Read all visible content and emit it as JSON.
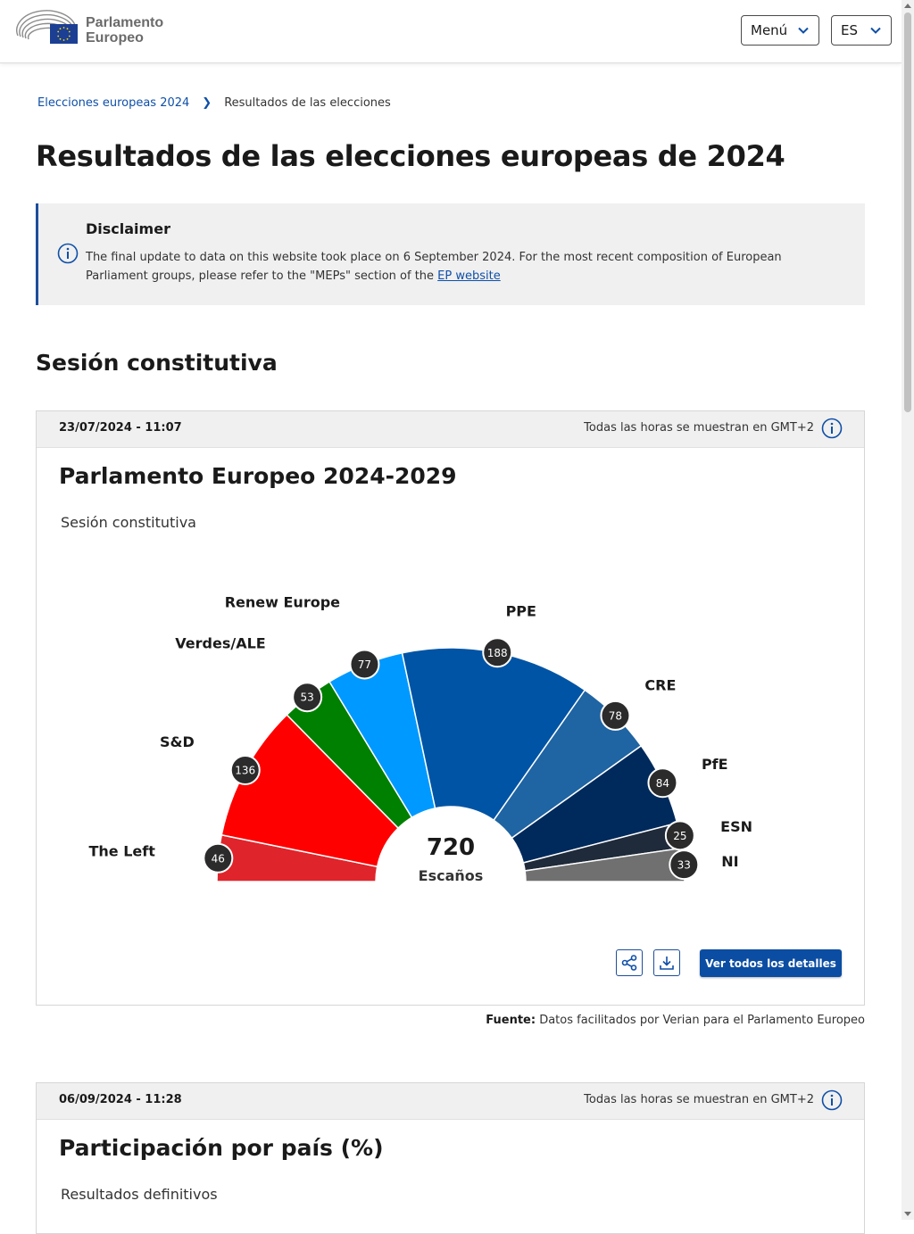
{
  "header": {
    "logo_line1": "Parlamento",
    "logo_line2": "Europeo",
    "menu_label": "Menú",
    "lang_label": "ES"
  },
  "breadcrumb": {
    "link": "Elecciones europeas 2024",
    "current": "Resultados de las elecciones"
  },
  "page_title": "Resultados de las elecciones europeas de 2024",
  "disclaimer": {
    "title": "Disclaimer",
    "text": "The final update to data on this website took place on 6 September 2024. For the most recent composition of European Parliament groups, please refer to the \"MEPs\" section of the",
    "link": "EP website"
  },
  "section_title": "Sesión constitutiva",
  "card1": {
    "date": "23/07/2024 - 11:07",
    "timezone_note": "Todas las horas se muestran en GMT+2",
    "title": "Parlamento Europeo 2024-2029",
    "subtitle": "Sesión constitutiva",
    "details_button": "Ver todos los detalles"
  },
  "source": {
    "label": "Fuente:",
    "text": "Datos facilitados por Verian para el Parlamento Europeo"
  },
  "card2": {
    "date": "06/09/2024 - 11:28",
    "timezone_note": "Todas las horas se muestran en GMT+2",
    "title": "Participación por país (%)",
    "subtitle": "Resultados definitivos"
  },
  "chart_data": {
    "type": "pie",
    "variant": "parliament-semicircle",
    "total": 720,
    "total_label": "Escaños",
    "series": [
      {
        "name": "The Left",
        "value": 46,
        "color": "#e0242b"
      },
      {
        "name": "S&D",
        "value": 136,
        "color": "#ff0000"
      },
      {
        "name": "Verdes/ALE",
        "value": 53,
        "color": "#008000"
      },
      {
        "name": "Renew Europe",
        "value": 77,
        "color": "#0099ff"
      },
      {
        "name": "PPE",
        "value": 188,
        "color": "#0054a5"
      },
      {
        "name": "CRE",
        "value": 78,
        "color": "#1f64a3"
      },
      {
        "name": "PfE",
        "value": 84,
        "color": "#002a5c"
      },
      {
        "name": "ESN",
        "value": 25,
        "color": "#1f2a3a"
      },
      {
        "name": "NI",
        "value": 33,
        "color": "#707070"
      }
    ]
  }
}
